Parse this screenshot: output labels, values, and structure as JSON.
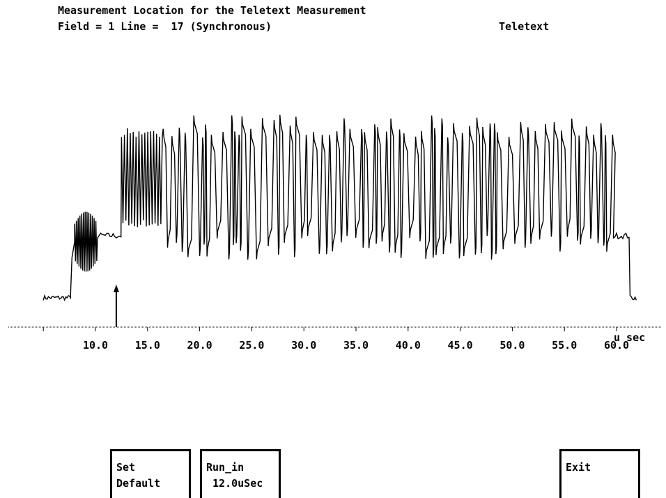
{
  "header": {
    "title": "Measurement Location for the Teletext Measurement",
    "field_line": "Field = 1 Line =  17 (Synchronous)",
    "mode": "Teletext"
  },
  "chart_data": {
    "type": "line",
    "title": "",
    "xlabel": "u sec",
    "ylabel": "",
    "xlim": [
      5.0,
      62.0
    ],
    "xticks": [
      10.0,
      15.0,
      20.0,
      25.0,
      30.0,
      35.0,
      40.0,
      45.0,
      50.0,
      55.0,
      60.0
    ],
    "tick_labels": [
      "10.0",
      "15.0",
      "20.0",
      "25.0",
      "30.0",
      "35.0",
      "40.0",
      "45.0",
      "50.0",
      "55.0",
      "60.0"
    ],
    "grid": false,
    "marker_position_usec": 12.0,
    "series": [
      {
        "description_levels": "relative signal amplitude 0=blank, 1=peak",
        "segments": [
          {
            "kind": "blank",
            "x": [
              5.0,
              7.6
            ],
            "level": 0.07
          },
          {
            "kind": "sync_rise",
            "x": [
              7.6,
              8.0
            ],
            "level": [
              0.07,
              0.35
            ]
          },
          {
            "kind": "colour_burst",
            "x": [
              8.0,
              10.2
            ],
            "level_low": 0.2,
            "level_high": 0.5
          },
          {
            "kind": "pedestal",
            "x": [
              10.2,
              12.5
            ],
            "level": 0.38
          },
          {
            "kind": "run_in_clock",
            "x": [
              12.5,
              16.5
            ],
            "level_low": 0.42,
            "level_high": 0.92
          },
          {
            "kind": "teletext_data",
            "x": [
              16.5,
              59.7
            ],
            "level_low": 0.3,
            "level_high": 0.95
          },
          {
            "kind": "pedestal",
            "x": [
              59.7,
              61.3
            ],
            "level": 0.38
          },
          {
            "kind": "blank",
            "x": [
              61.3,
              62.0
            ],
            "level": 0.07
          }
        ]
      }
    ]
  },
  "softkeys": {
    "set_default": {
      "line1": "Set",
      "line2": "Default"
    },
    "run_in": {
      "line1": "Run_in",
      "line2": " 12.0uSec"
    },
    "exit": {
      "line1": "Exit",
      "line2": ""
    }
  }
}
